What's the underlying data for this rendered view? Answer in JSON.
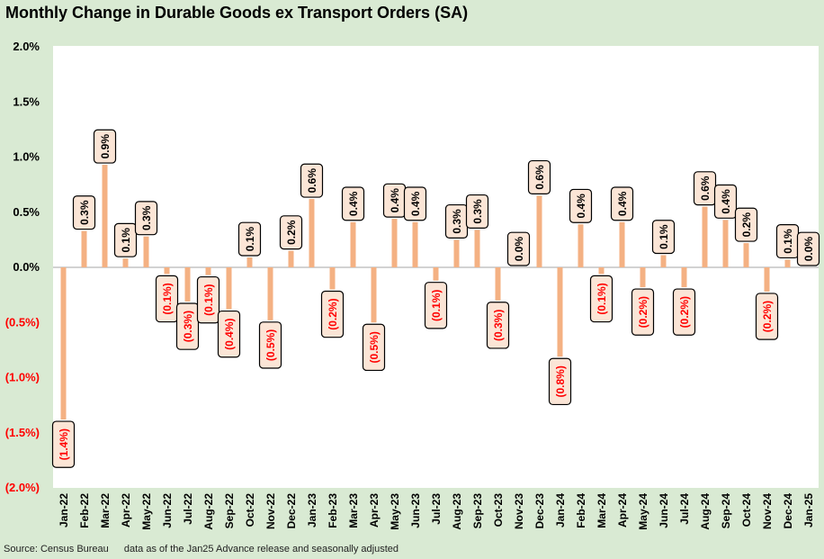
{
  "title": "Monthly Change in Durable Goods ex Transport Orders (SA)",
  "footer": {
    "source": "Source: Census Bureau",
    "note": "data as of the Jan25 Advance release and seasonally adjusted"
  },
  "colors": {
    "background": "#d9ead3",
    "plot": "#ffffff",
    "bar": "#f4b183",
    "negative_label": "#ff0000",
    "label_fill": "#fbe5d6"
  },
  "chart_data": {
    "type": "bar",
    "ylim": [
      -2.0,
      2.0
    ],
    "yticks": [
      2.0,
      1.5,
      1.0,
      0.5,
      0.0,
      -0.5,
      -1.0,
      -1.5,
      -2.0
    ],
    "ytick_labels": [
      "2.0%",
      "1.5%",
      "1.0%",
      "0.5%",
      "0.0%",
      "(0.5%)",
      "(1.0%)",
      "(1.5%)",
      "(2.0%)"
    ],
    "grid": false,
    "categories": [
      "Jan-22",
      "Feb-22",
      "Mar-22",
      "Apr-22",
      "May-22",
      "Jun-22",
      "Jul-22",
      "Aug-22",
      "Sep-22",
      "Oct-22",
      "Nov-22",
      "Dec-22",
      "Jan-23",
      "Feb-23",
      "Mar-23",
      "Apr-23",
      "May-23",
      "Jun-23",
      "Jul-23",
      "Aug-23",
      "Sep-23",
      "Oct-23",
      "Nov-23",
      "Dec-23",
      "Jan-24",
      "Feb-24",
      "Mar-24",
      "Apr-24",
      "May-24",
      "Jun-24",
      "Jul-24",
      "Aug-24",
      "Sep-24",
      "Oct-24",
      "Nov-24",
      "Dec-24",
      "Jan-25"
    ],
    "values": [
      -1.38,
      0.33,
      0.93,
      0.08,
      0.28,
      -0.06,
      -0.31,
      -0.07,
      -0.38,
      0.09,
      -0.48,
      0.15,
      0.62,
      -0.2,
      0.41,
      -0.5,
      0.44,
      0.41,
      -0.12,
      0.25,
      0.34,
      -0.3,
      0.0,
      0.65,
      -0.81,
      0.39,
      -0.06,
      0.41,
      -0.18,
      0.11,
      -0.18,
      0.55,
      0.43,
      0.22,
      -0.22,
      0.07,
      0.0
    ],
    "data_labels": [
      "(1.4%)",
      "0.3%",
      "0.9%",
      "0.1%",
      "0.3%",
      "(0.1%)",
      "(0.3%)",
      "(0.1%)",
      "(0.4%)",
      "0.1%",
      "(0.5%)",
      "0.2%",
      "0.6%",
      "(0.2%)",
      "0.4%",
      "(0.5%)",
      "0.4%",
      "0.4%",
      "(0.1%)",
      "0.3%",
      "0.3%",
      "(0.3%)",
      "0.0%",
      "0.6%",
      "(0.8%)",
      "0.4%",
      "(0.1%)",
      "0.4%",
      "(0.2%)",
      "0.1%",
      "(0.2%)",
      "0.6%",
      "0.4%",
      "0.2%",
      "(0.2%)",
      "0.1%",
      "0.0%"
    ]
  }
}
